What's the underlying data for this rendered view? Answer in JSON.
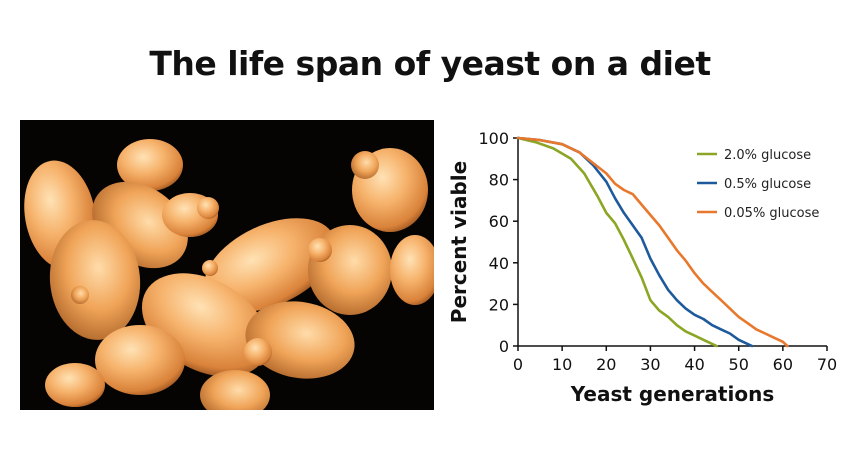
{
  "chart_data": {
    "type": "line",
    "title": "The life span of yeast on a diet",
    "xlabel": "Yeast generations",
    "ylabel": "Percent viable",
    "xlim": [
      0,
      70
    ],
    "ylim": [
      0,
      100
    ],
    "xticks": [
      0,
      10,
      20,
      30,
      40,
      50,
      60,
      70
    ],
    "yticks": [
      0,
      20,
      40,
      60,
      80,
      100
    ],
    "grid": false,
    "legend_position": "top-right",
    "series": [
      {
        "name": "2.0% glucose",
        "color": "#8aa624",
        "x": [
          0,
          4,
          8,
          12,
          15,
          18,
          20,
          22,
          24,
          26,
          28,
          30,
          32,
          34,
          36,
          38,
          40,
          42,
          44,
          45
        ],
        "y": [
          100,
          98,
          95,
          90,
          83,
          72,
          64,
          59,
          51,
          42,
          33,
          22,
          17,
          14,
          10,
          7,
          5,
          3,
          1,
          0
        ]
      },
      {
        "name": "0.5% glucose",
        "color": "#1d5a9c",
        "x": [
          0,
          5,
          10,
          14,
          17,
          20,
          22,
          24,
          26,
          28,
          30,
          32,
          34,
          36,
          38,
          40,
          42,
          44,
          46,
          48,
          50,
          52,
          53
        ],
        "y": [
          100,
          99,
          97,
          93,
          87,
          79,
          71,
          64,
          58,
          52,
          42,
          34,
          27,
          22,
          18,
          15,
          13,
          10,
          8,
          6,
          3,
          1,
          0
        ]
      },
      {
        "name": "0.05% glucose",
        "color": "#e8782c",
        "x": [
          0,
          5,
          10,
          14,
          17,
          20,
          22,
          24,
          26,
          28,
          30,
          32,
          34,
          36,
          38,
          40,
          42,
          44,
          46,
          48,
          50,
          52,
          54,
          56,
          58,
          60,
          61
        ],
        "y": [
          100,
          99,
          97,
          93,
          88,
          83,
          78,
          75,
          73,
          68,
          63,
          58,
          52,
          46,
          41,
          35,
          30,
          26,
          22,
          18,
          14,
          11,
          8,
          6,
          4,
          2,
          0
        ]
      }
    ]
  },
  "photo": {
    "color": "#f2a65a"
  }
}
